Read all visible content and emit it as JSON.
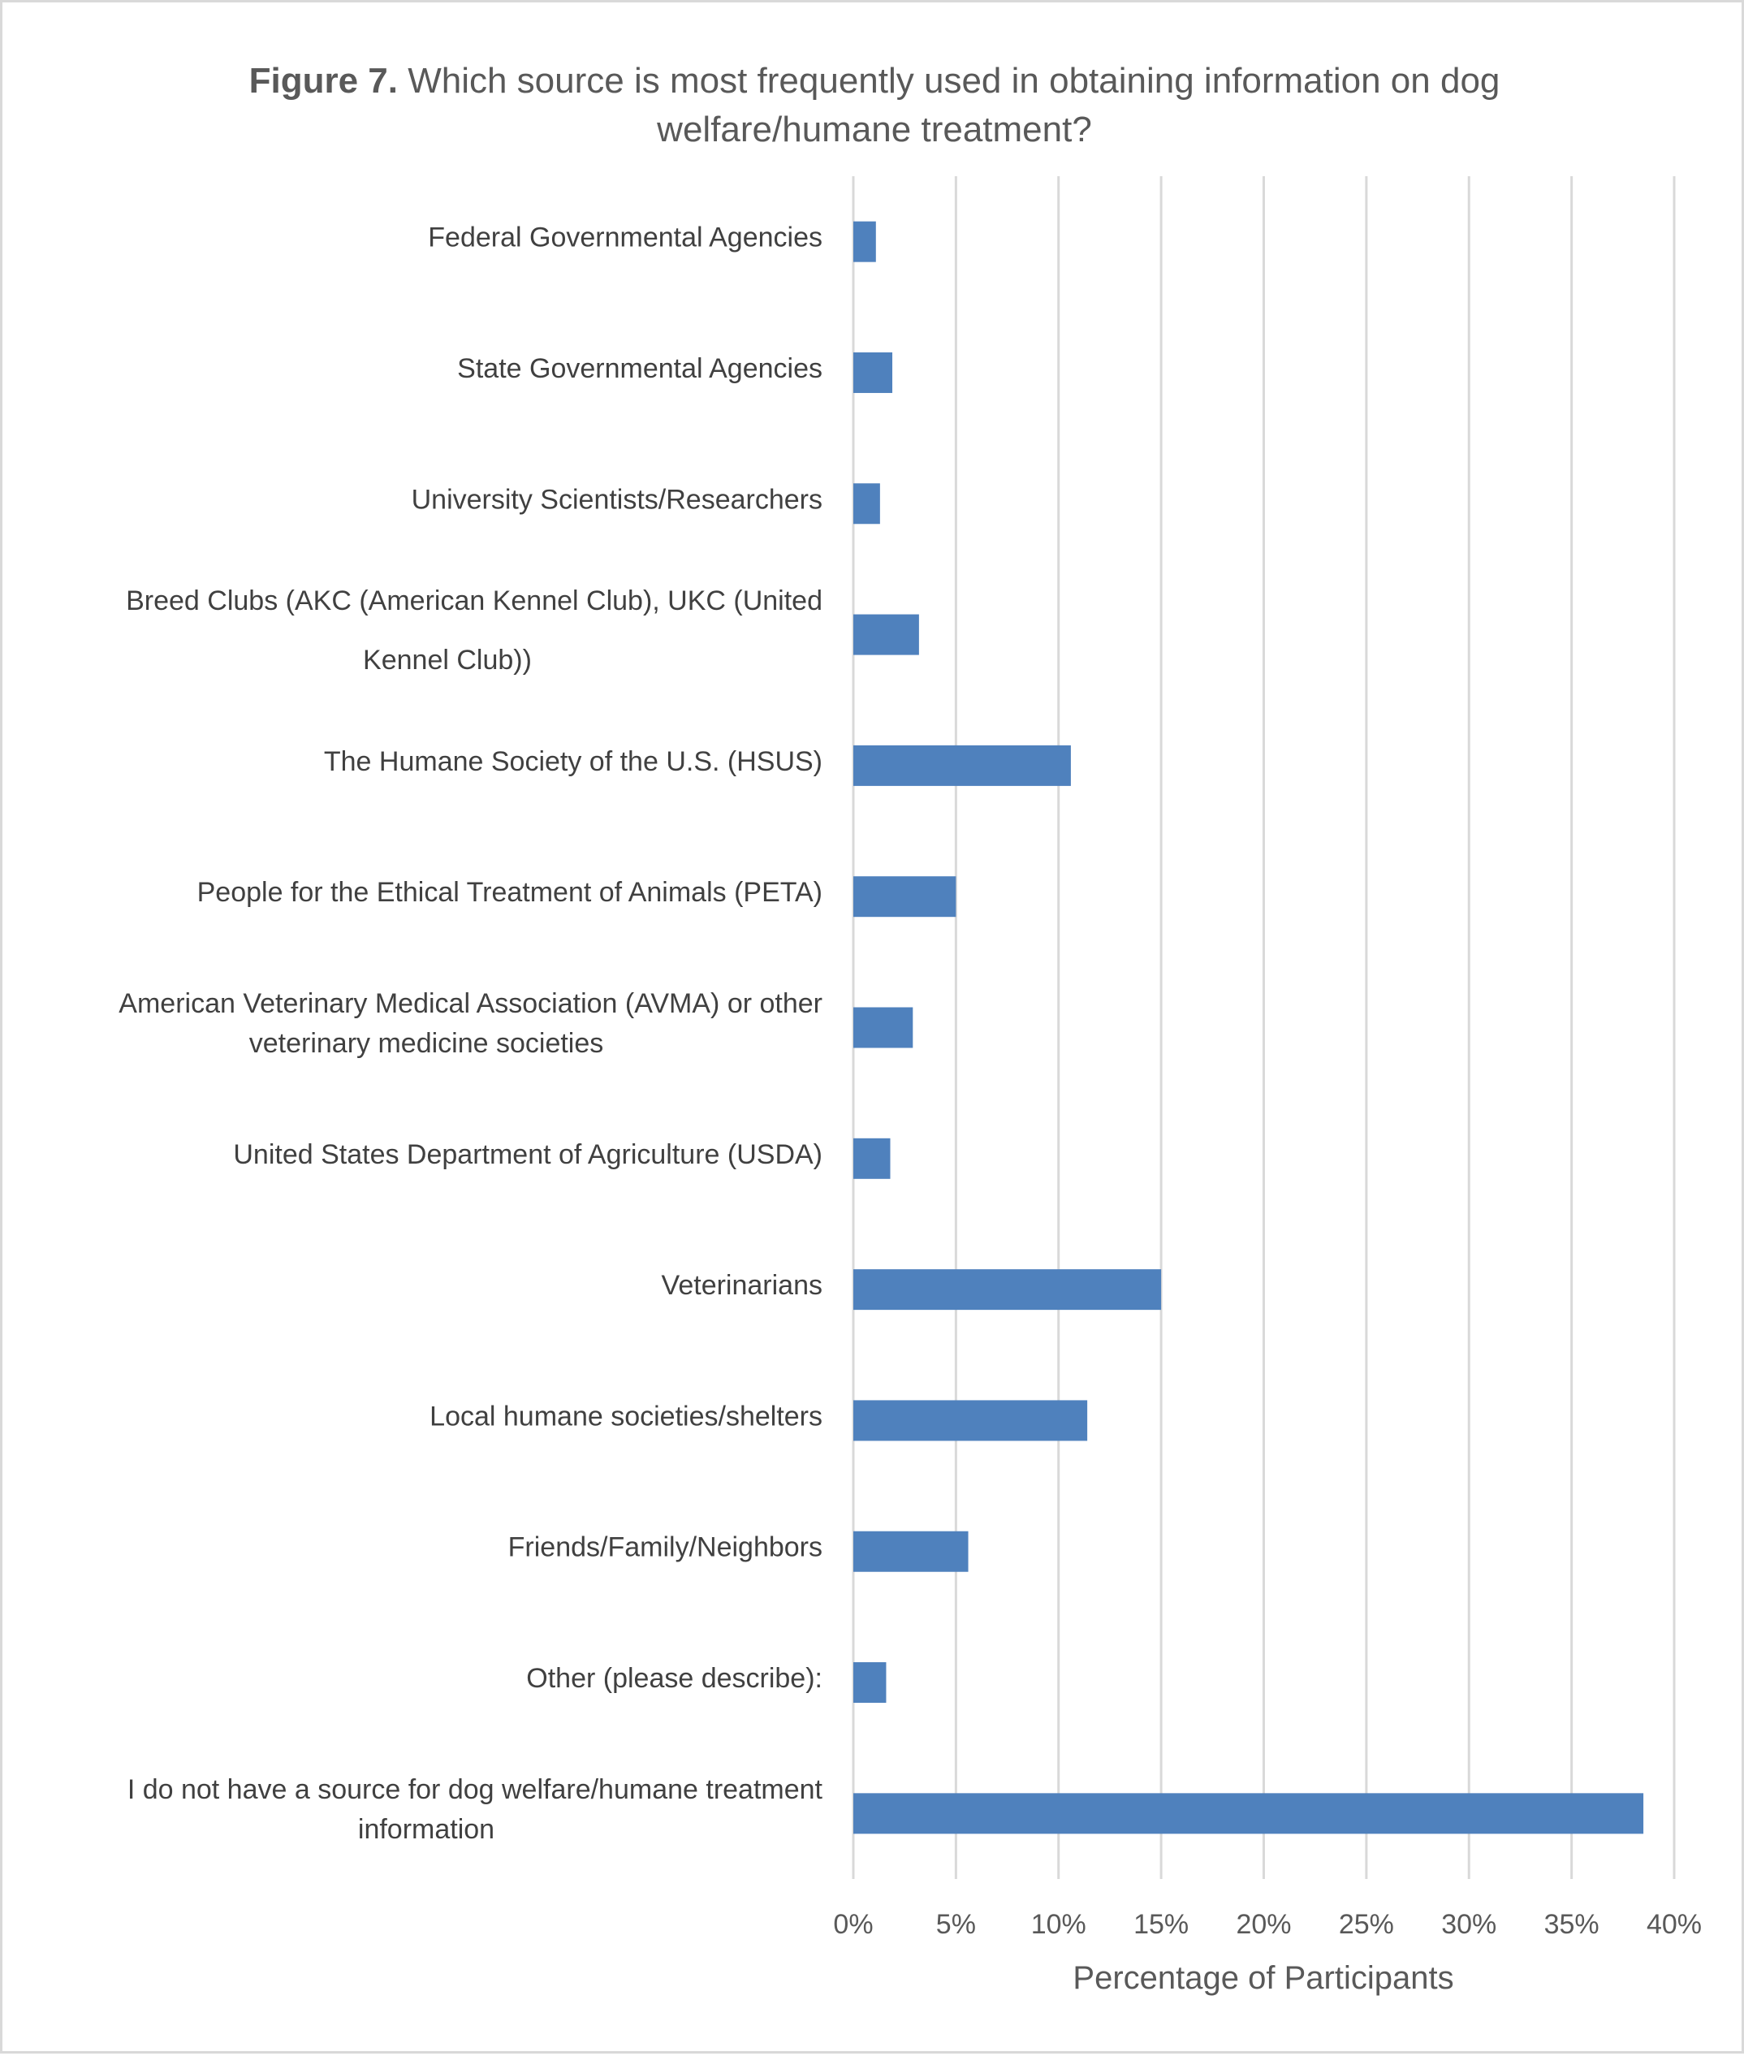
{
  "chart_data": {
    "type": "bar",
    "orientation": "horizontal",
    "title_bold": "Figure 7.",
    "title_lines": [
      "Which source is most frequently used in obtaining information on dog",
      "welfare/humane treatment?"
    ],
    "xlabel": "Percentage of Participants",
    "ylabel": "",
    "xlim": [
      0,
      40
    ],
    "x_ticks": [
      "0%",
      "5%",
      "10%",
      "15%",
      "20%",
      "25%",
      "30%",
      "35%",
      "40%"
    ],
    "grid": "vertical",
    "bar_color": "#4f81bd",
    "categories": [
      [
        "Federal Governmental Agencies"
      ],
      [
        "State Governmental Agencies"
      ],
      [
        "University Scientists/Researchers"
      ],
      [
        "Breed Clubs (AKC (American Kennel Club), UKC (United",
        "Kennel Club))"
      ],
      [
        "The Humane Society of the U.S. (HSUS)"
      ],
      [
        "People for the Ethical Treatment of Animals (PETA)"
      ],
      [
        "American Veterinary Medical Association (AVMA) or other",
        "veterinary medicine societies"
      ],
      [
        "United States Department of Agriculture (USDA)"
      ],
      [
        "Veterinarians"
      ],
      [
        "Local humane societies/shelters"
      ],
      [
        "Friends/Family/Neighbors"
      ],
      [
        "Other (please describe):"
      ],
      [
        "I do not have a source for dog welfare/humane treatment",
        "information"
      ]
    ],
    "values": [
      1.1,
      1.9,
      1.3,
      3.2,
      10.6,
      5.0,
      2.9,
      1.8,
      15.0,
      11.4,
      5.6,
      1.6,
      38.5
    ]
  }
}
